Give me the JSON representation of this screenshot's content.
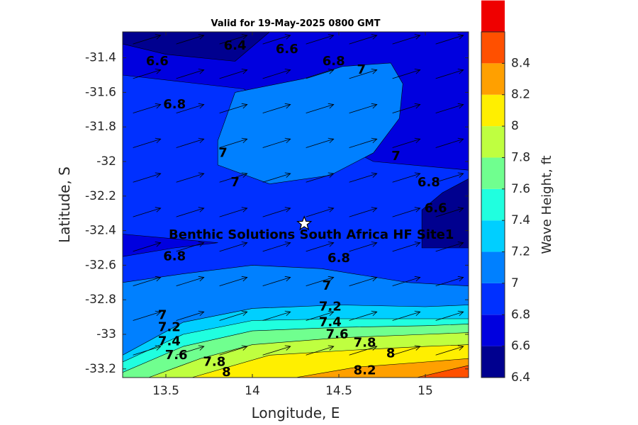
{
  "chart_data": {
    "type": "contour",
    "title": "Valid for 19-May-2025 0800 GMT",
    "xlabel": "Longitude, E",
    "ylabel": "Latitude, S",
    "xlim": [
      13.25,
      15.25
    ],
    "ylim": [
      -33.25,
      -31.25
    ],
    "xticks": [
      13.5,
      14,
      14.5,
      15
    ],
    "xtick_labels": [
      "13.5",
      "14",
      "14.5",
      "15"
    ],
    "yticks": [
      -31.4,
      -31.6,
      -31.8,
      -32,
      -32.2,
      -32.4,
      -32.6,
      -32.8,
      -33,
      -33.2
    ],
    "ytick_labels": [
      "-31.4",
      "-31.6",
      "-31.8",
      "-32",
      "-32.2",
      "-32.4",
      "-32.6",
      "-32.8",
      "-33",
      "-33.2"
    ],
    "colorbar": {
      "label": "Wave Height, ft",
      "levels": [
        6.4,
        6.6,
        6.8,
        7.0,
        7.2,
        7.4,
        7.6,
        7.8,
        8.0,
        8.2,
        8.4,
        8.6
      ],
      "tick_values": [
        6.4,
        6.6,
        6.8,
        7,
        7.2,
        7.4,
        7.6,
        7.8,
        8,
        8.2,
        8.4
      ],
      "tick_labels": [
        "6.4",
        "6.6",
        "6.8",
        "7",
        "7.2",
        "7.4",
        "7.6",
        "7.8",
        "8",
        "8.2",
        "8.4"
      ],
      "colors": [
        "#00008f",
        "#0000df",
        "#0030ff",
        "#0080ff",
        "#00cfff",
        "#20ffdf",
        "#70ff8f",
        "#bfff40",
        "#ffef00",
        "#ffa000",
        "#ff5000",
        "#ef0000"
      ]
    },
    "bands": [
      {
        "level": 6.8,
        "points": [
          [
            13.25,
            -31.25
          ],
          [
            15.25,
            -31.25
          ],
          [
            15.25,
            -33.25
          ],
          [
            13.25,
            -33.25
          ]
        ]
      },
      {
        "level": 6.6,
        "points": [
          [
            13.25,
            -31.25
          ],
          [
            15.25,
            -31.25
          ],
          [
            15.25,
            -32.05
          ],
          [
            14.7,
            -32.0
          ],
          [
            14.3,
            -31.8
          ],
          [
            13.95,
            -31.58
          ],
          [
            13.25,
            -31.5
          ]
        ]
      },
      {
        "level": 6.4,
        "points": [
          [
            13.25,
            -31.25
          ],
          [
            14.1,
            -31.25
          ],
          [
            13.9,
            -31.42
          ],
          [
            13.5,
            -31.38
          ],
          [
            13.25,
            -31.32
          ]
        ]
      },
      {
        "level": 6.4,
        "points": [
          [
            15.25,
            -32.1
          ],
          [
            15.25,
            -32.5
          ],
          [
            14.98,
            -32.5
          ],
          [
            14.98,
            -32.28
          ],
          [
            15.1,
            -32.18
          ]
        ]
      },
      {
        "level": 6.6,
        "points": [
          [
            13.25,
            -32.42
          ],
          [
            13.8,
            -32.47
          ],
          [
            13.55,
            -32.5
          ],
          [
            13.25,
            -32.55
          ]
        ]
      },
      {
        "level": 7.0,
        "points": [
          [
            13.25,
            -33.25
          ],
          [
            13.25,
            -32.7
          ],
          [
            13.6,
            -32.65
          ],
          [
            14.0,
            -32.6
          ],
          [
            14.4,
            -32.62
          ],
          [
            14.9,
            -32.7
          ],
          [
            15.25,
            -32.72
          ],
          [
            15.25,
            -33.25
          ]
        ]
      },
      {
        "level": 7.0,
        "points": [
          [
            13.8,
            -31.88
          ],
          [
            13.9,
            -31.6
          ],
          [
            14.3,
            -31.52
          ],
          [
            14.52,
            -31.45
          ],
          [
            14.8,
            -31.43
          ],
          [
            14.87,
            -31.55
          ],
          [
            14.85,
            -31.75
          ],
          [
            14.7,
            -31.95
          ],
          [
            14.45,
            -32.08
          ],
          [
            14.1,
            -32.13
          ],
          [
            13.8,
            -32.02
          ]
        ]
      },
      {
        "level": 7.2,
        "points": [
          [
            13.25,
            -33.25
          ],
          [
            13.25,
            -33.12
          ],
          [
            13.6,
            -32.93
          ],
          [
            14.0,
            -32.85
          ],
          [
            14.5,
            -32.83
          ],
          [
            15.0,
            -32.84
          ],
          [
            15.25,
            -32.83
          ],
          [
            15.25,
            -33.25
          ]
        ]
      },
      {
        "level": 7.4,
        "points": [
          [
            13.25,
            -33.25
          ],
          [
            13.25,
            -33.16
          ],
          [
            13.6,
            -33.0
          ],
          [
            14.0,
            -32.92
          ],
          [
            14.5,
            -32.91
          ],
          [
            15.0,
            -32.91
          ],
          [
            15.25,
            -32.91
          ],
          [
            15.25,
            -33.25
          ]
        ]
      },
      {
        "level": 7.6,
        "points": [
          [
            13.25,
            -33.25
          ],
          [
            13.25,
            -33.22
          ],
          [
            13.6,
            -33.07
          ],
          [
            14.0,
            -32.98
          ],
          [
            14.5,
            -32.96
          ],
          [
            15.0,
            -32.95
          ],
          [
            15.25,
            -32.94
          ],
          [
            15.25,
            -33.25
          ]
        ]
      },
      {
        "level": 7.8,
        "points": [
          [
            13.4,
            -33.25
          ],
          [
            13.7,
            -33.14
          ],
          [
            14.0,
            -33.06
          ],
          [
            14.5,
            -33.02
          ],
          [
            15.0,
            -33.0
          ],
          [
            15.25,
            -32.99
          ],
          [
            15.25,
            -33.25
          ]
        ]
      },
      {
        "level": 8.0,
        "points": [
          [
            13.65,
            -33.25
          ],
          [
            14.1,
            -33.12
          ],
          [
            14.6,
            -33.09
          ],
          [
            15.0,
            -33.07
          ],
          [
            15.25,
            -33.06
          ],
          [
            15.25,
            -33.25
          ]
        ]
      },
      {
        "level": 8.2,
        "points": [
          [
            14.25,
            -33.25
          ],
          [
            14.6,
            -33.19
          ],
          [
            15.0,
            -33.16
          ],
          [
            15.25,
            -33.14
          ],
          [
            15.25,
            -33.25
          ]
        ]
      },
      {
        "level": 8.4,
        "points": [
          [
            14.95,
            -33.25
          ],
          [
            15.25,
            -33.18
          ],
          [
            15.25,
            -33.25
          ]
        ]
      }
    ],
    "contour_labels": [
      {
        "text": "6.4",
        "x": 13.9,
        "y": -31.33
      },
      {
        "text": "6.6",
        "x": 13.45,
        "y": -31.42
      },
      {
        "text": "6.6",
        "x": 14.2,
        "y": -31.35
      },
      {
        "text": "6.8",
        "x": 14.47,
        "y": -31.42
      },
      {
        "text": "7",
        "x": 14.63,
        "y": -31.47
      },
      {
        "text": "6.8",
        "x": 13.55,
        "y": -31.67
      },
      {
        "text": "7",
        "x": 13.83,
        "y": -31.95
      },
      {
        "text": "7",
        "x": 13.9,
        "y": -32.12
      },
      {
        "text": "7",
        "x": 14.83,
        "y": -31.97
      },
      {
        "text": "6.8",
        "x": 15.02,
        "y": -32.12
      },
      {
        "text": "6.6",
        "x": 15.06,
        "y": -32.27
      },
      {
        "text": "6.8",
        "x": 13.55,
        "y": -32.55
      },
      {
        "text": "6.8",
        "x": 14.5,
        "y": -32.56
      },
      {
        "text": "7",
        "x": 14.43,
        "y": -32.72
      },
      {
        "text": "7.2",
        "x": 14.45,
        "y": -32.84
      },
      {
        "text": "7.4",
        "x": 14.45,
        "y": -32.93
      },
      {
        "text": "7.6",
        "x": 14.49,
        "y": -33.0
      },
      {
        "text": "7.8",
        "x": 14.65,
        "y": -33.05
      },
      {
        "text": "8",
        "x": 14.8,
        "y": -33.11
      },
      {
        "text": "8.2",
        "x": 14.65,
        "y": -33.21
      },
      {
        "text": "7",
        "x": 13.48,
        "y": -32.89
      },
      {
        "text": "7.2",
        "x": 13.52,
        "y": -32.96
      },
      {
        "text": "7.4",
        "x": 13.52,
        "y": -33.04
      },
      {
        "text": "7.6",
        "x": 13.56,
        "y": -33.12
      },
      {
        "text": "7.8",
        "x": 13.78,
        "y": -33.16
      },
      {
        "text": "8",
        "x": 13.85,
        "y": -33.22
      }
    ],
    "vector_field": {
      "x": [
        13.31,
        13.56,
        13.81,
        14.06,
        14.31,
        14.56,
        14.81,
        15.06
      ],
      "y": [
        -31.32,
        -31.52,
        -31.72,
        -31.92,
        -32.12,
        -32.32,
        -32.52,
        -32.72,
        -32.92,
        -33.12
      ],
      "dx": 0.16,
      "dy": 0.05
    },
    "site": {
      "label": "Benthic Solutions South Africa HF Site1",
      "lon": 14.3,
      "lat": -32.36
    }
  }
}
